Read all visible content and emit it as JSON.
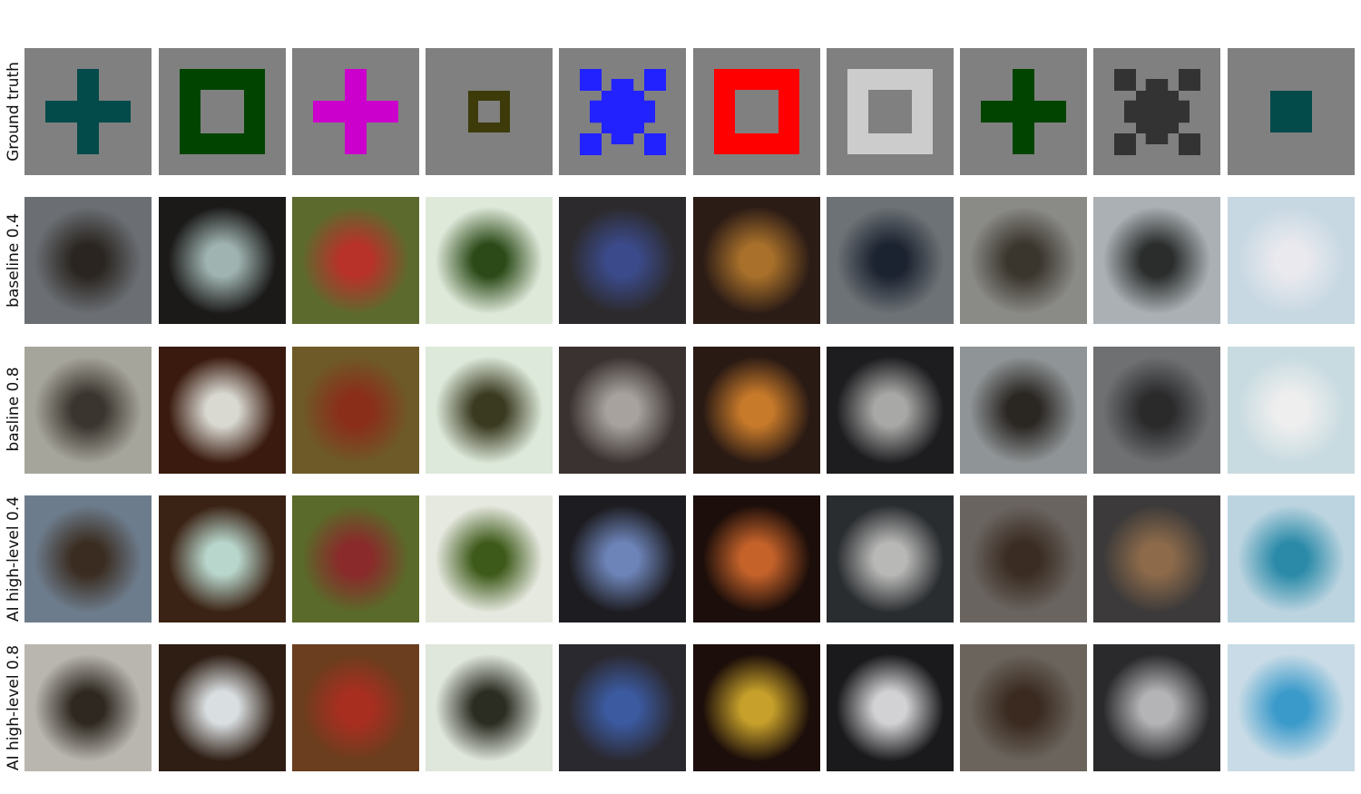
{
  "row_labels": [
    "Ground truth",
    "baseline 0.4",
    "basline 0.8",
    "AI high-level 0.4",
    "AI high-level 0.8"
  ],
  "ground_truth": [
    {
      "shape": "plus",
      "color": "#034a4a",
      "size": "large"
    },
    {
      "shape": "square-outline",
      "color": "#004400",
      "size": "large"
    },
    {
      "shape": "plus",
      "color": "#cc00cc",
      "size": "large"
    },
    {
      "shape": "square-outline",
      "color": "#3d3b0a",
      "size": "small"
    },
    {
      "shape": "x",
      "color": "#2222ff",
      "size": "large"
    },
    {
      "shape": "square-outline",
      "color": "#ff0000",
      "size": "large"
    },
    {
      "shape": "square-outline",
      "color": "#cccccc",
      "size": "large"
    },
    {
      "shape": "plus",
      "color": "#004400",
      "size": "large"
    },
    {
      "shape": "x",
      "color": "#333333",
      "size": "large"
    },
    {
      "shape": "square-solid",
      "color": "#034a4a",
      "size": "small"
    }
  ],
  "photo_rows": [
    {
      "label_index": 1,
      "tiles": [
        [
          "#6b6f74",
          "#2a2520"
        ],
        [
          "#1b1a19",
          "#9fb3b0"
        ],
        [
          "#5d6a2e",
          "#b8322a"
        ],
        [
          "#dfe9da",
          "#2b4a18"
        ],
        [
          "#2c2a2c",
          "#3b4a8a"
        ],
        [
          "#2c1c16",
          "#a8702a"
        ],
        [
          "#6d7276",
          "#1c2330"
        ],
        [
          "#8a8a86",
          "#3a352d"
        ],
        [
          "#aab0b4",
          "#2a2d2c"
        ],
        [
          "#c7d8e3",
          "#e9e9ee"
        ]
      ]
    },
    {
      "label_index": 2,
      "tiles": [
        [
          "#a6a59c",
          "#3a352e"
        ],
        [
          "#3a1a0e",
          "#d9d9d2"
        ],
        [
          "#6e5a28",
          "#8a2e1a"
        ],
        [
          "#dde9da",
          "#3a3a20"
        ],
        [
          "#3a3230",
          "#a7a29e"
        ],
        [
          "#2a1a14",
          "#c77a2a"
        ],
        [
          "#1d1d20",
          "#a8a8a6"
        ],
        [
          "#8f9496",
          "#2a2622"
        ],
        [
          "#6e7072",
          "#2a2a2b"
        ],
        [
          "#c8dbe1",
          "#eeeeee"
        ]
      ]
    },
    {
      "label_index": 3,
      "tiles": [
        [
          "#6d7c8c",
          "#3a2c20"
        ],
        [
          "#3a2214",
          "#b8d6cc"
        ],
        [
          "#5a6a2a",
          "#8a2a2a"
        ],
        [
          "#e6e9e0",
          "#3e5a1a"
        ],
        [
          "#1d1c20",
          "#6d84b8"
        ],
        [
          "#1c0e0a",
          "#c4622a"
        ],
        [
          "#2a2d30",
          "#b8b8b6"
        ],
        [
          "#6a6460",
          "#3a2c22"
        ],
        [
          "#3c3a3a",
          "#8c6a4a"
        ],
        [
          "#bcd4e0",
          "#2a8aa8"
        ]
      ]
    },
    {
      "label_index": 4,
      "tiles": [
        [
          "#b9b6b0",
          "#2e2820"
        ],
        [
          "#2e1e14",
          "#d9dee0"
        ],
        [
          "#6a3e1e",
          "#a82e20"
        ],
        [
          "#dfe6dc",
          "#2b2c22"
        ],
        [
          "#2b2930",
          "#3b5aa0"
        ],
        [
          "#1c0e0a",
          "#c6a02a"
        ],
        [
          "#1a1a1c",
          "#d2d2d4"
        ],
        [
          "#6a645c",
          "#3a2a20"
        ],
        [
          "#2a2a2c",
          "#b4b4b6"
        ],
        [
          "#c8dbe6",
          "#3a9aca"
        ]
      ]
    }
  ]
}
